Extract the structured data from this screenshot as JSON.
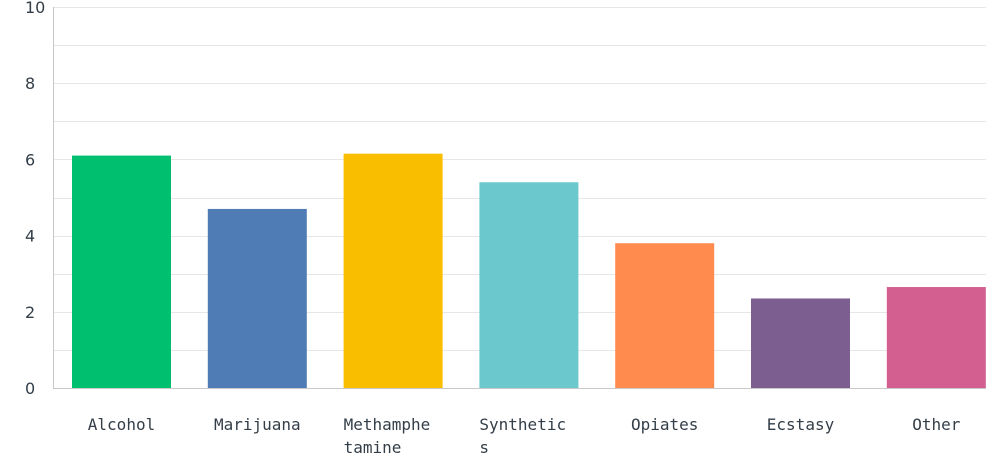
{
  "chart_data": {
    "type": "bar",
    "title": "",
    "xlabel": "",
    "ylabel": "",
    "ylim": [
      0,
      10
    ],
    "yticks": [
      0,
      2,
      4,
      6,
      8,
      10
    ],
    "grid": true,
    "legend": "none",
    "categories": [
      "Alcohol",
      "Marijuana",
      "Methamphetamine",
      "Synthetics",
      "Opiates",
      "Ecstasy",
      "Other"
    ],
    "category_label_lines": [
      [
        "Alcohol"
      ],
      [
        "Marijuana"
      ],
      [
        "Methamphe",
        "tamine"
      ],
      [
        "Synthetic",
        "s"
      ],
      [
        "Opiates"
      ],
      [
        "Ecstasy"
      ],
      [
        "Other"
      ]
    ],
    "values": [
      6.1,
      4.7,
      6.15,
      5.4,
      3.8,
      2.35,
      2.65
    ],
    "colors": [
      "#00bf6f",
      "#507cb6",
      "#f9be00",
      "#6bc8cd",
      "#ff8b4f",
      "#7d5e90",
      "#d25f90"
    ]
  }
}
